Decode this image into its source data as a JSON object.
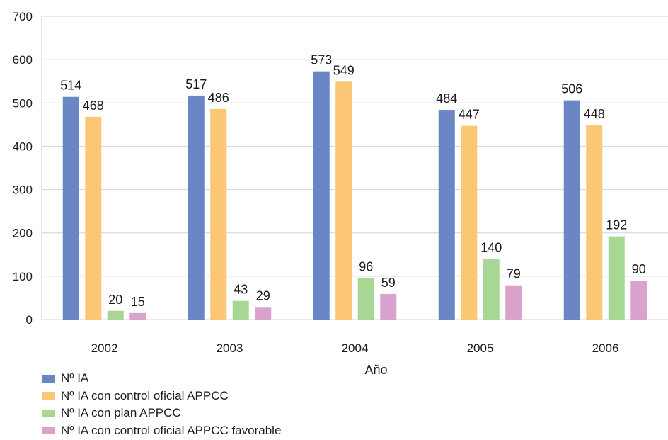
{
  "chart_data": {
    "type": "bar",
    "categories": [
      "2002",
      "2003",
      "2004",
      "2005",
      "2006"
    ],
    "series": [
      {
        "name": "Nº IA",
        "color": "#6a86c4",
        "values": [
          514,
          517,
          573,
          484,
          506
        ]
      },
      {
        "name": "Nº IA con control oficial APPCC",
        "color": "#fcc774",
        "values": [
          468,
          486,
          549,
          447,
          448
        ]
      },
      {
        "name": "Nº IA con plan APPCC",
        "color": "#a8d795",
        "values": [
          20,
          43,
          96,
          140,
          192
        ]
      },
      {
        "name": "Nº IA con control oficial APPCC favorable",
        "color": "#d9a3cd",
        "values": [
          15,
          29,
          59,
          79,
          90
        ]
      }
    ],
    "xlabel": "Año",
    "ylabel": "",
    "ylim": [
      0,
      700
    ],
    "yticks": [
      0,
      100,
      200,
      300,
      400,
      500,
      600,
      700
    ],
    "grid": true,
    "legend_position": "bottom-left"
  }
}
